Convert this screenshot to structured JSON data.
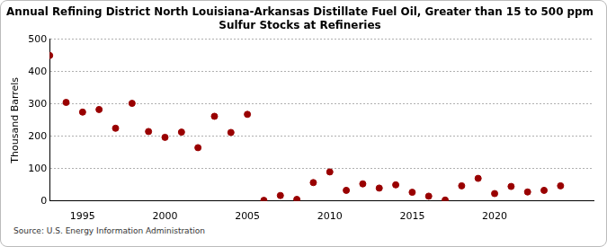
{
  "chart_data": {
    "type": "scatter",
    "title": [
      "Annual Refining District North Louisiana-Arkansas Distillate Fuel Oil, Greater than 15 to 500 ppm",
      "Sulfur Stocks at Refineries"
    ],
    "y_label": "Thousand Barrels",
    "source": "Source: U.S. Energy Information Administration",
    "x": [
      1993,
      1994,
      1995,
      1996,
      1997,
      1998,
      1999,
      2000,
      2001,
      2002,
      2003,
      2004,
      2005,
      2006,
      2007,
      2008,
      2009,
      2010,
      2011,
      2012,
      2013,
      2014,
      2015,
      2016,
      2017,
      2018,
      2019,
      2020,
      2021,
      2022,
      2023,
      2024
    ],
    "values": [
      450,
      305,
      275,
      283,
      225,
      302,
      215,
      197,
      213,
      165,
      262,
      212,
      268,
      2,
      17,
      5,
      57,
      90,
      33,
      53,
      40,
      50,
      27,
      15,
      3,
      47,
      70,
      23,
      45,
      28,
      33,
      47
    ],
    "color": "#990000",
    "marker": "circle",
    "xlim": [
      1993,
      2026
    ],
    "xticks": [
      1995,
      2000,
      2005,
      2010,
      2015,
      2020
    ],
    "ylim": [
      0,
      500
    ],
    "yticks": [
      0,
      100,
      200,
      300,
      400,
      500
    ],
    "grid": true
  }
}
